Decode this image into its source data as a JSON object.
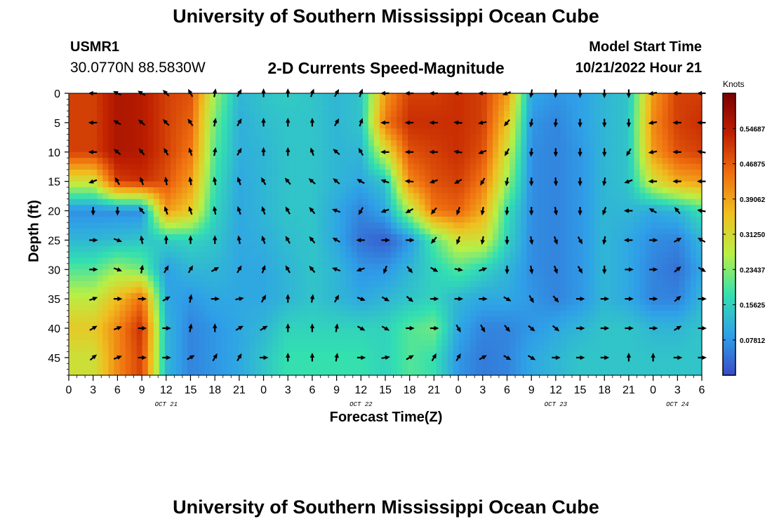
{
  "header": {
    "title": "University of Southern Mississippi Ocean Cube",
    "station": "USMR1",
    "coordinates": "30.0770N  88.5830W",
    "subtitle": "2-D Currents Speed-Magnitude",
    "model_start_label": "Model Start Time",
    "model_start_value": "10/21/2022 Hour 21"
  },
  "footer": {
    "title": "University of Southern Mississippi Ocean Cube"
  },
  "chart_data": {
    "type": "heatmap",
    "title": "2-D Currents Speed-Magnitude",
    "xlabel": "Forecast Time(Z)",
    "ylabel": "Depth (ft)",
    "colorbar_label": "Knots",
    "x_ticks": [
      "0",
      "3",
      "6",
      "9",
      "12",
      "15",
      "18",
      "21",
      "0",
      "3",
      "6",
      "9",
      "12",
      "15",
      "18",
      "21",
      "0",
      "3",
      "6",
      "9",
      "12",
      "15",
      "18",
      "21",
      "0",
      "3",
      "6"
    ],
    "date_labels": [
      {
        "label": "OCT 21",
        "tick_index": 4
      },
      {
        "label": "OCT 22",
        "tick_index": 12
      },
      {
        "label": "OCT 23",
        "tick_index": 20
      },
      {
        "label": "OCT 24",
        "tick_index": 25
      }
    ],
    "y_ticks": [
      0,
      5,
      10,
      15,
      20,
      25,
      30,
      35,
      40,
      45
    ],
    "ylim": [
      48,
      0
    ],
    "hours": [
      3,
      6,
      9,
      12,
      15,
      18,
      21,
      24,
      27,
      30,
      33,
      36,
      39,
      42,
      45,
      48,
      51,
      54,
      57,
      60,
      63,
      66,
      69,
      72,
      75,
      78
    ],
    "depths": [
      0,
      5,
      10,
      15,
      20,
      25,
      30,
      35,
      40,
      45
    ],
    "speed_knots": [
      [
        0.5,
        0.56,
        0.55,
        0.5,
        0.48,
        0.25,
        0.12,
        0.14,
        0.15,
        0.14,
        0.12,
        0.14,
        0.4,
        0.5,
        0.5,
        0.52,
        0.5,
        0.4,
        0.1,
        0.08,
        0.09,
        0.12,
        0.14,
        0.4,
        0.5,
        0.5
      ],
      [
        0.5,
        0.56,
        0.55,
        0.5,
        0.46,
        0.22,
        0.11,
        0.13,
        0.14,
        0.14,
        0.12,
        0.14,
        0.44,
        0.52,
        0.52,
        0.52,
        0.5,
        0.35,
        0.08,
        0.06,
        0.09,
        0.12,
        0.14,
        0.42,
        0.5,
        0.52
      ],
      [
        0.5,
        0.56,
        0.55,
        0.5,
        0.44,
        0.2,
        0.11,
        0.12,
        0.14,
        0.14,
        0.12,
        0.12,
        0.3,
        0.48,
        0.5,
        0.52,
        0.48,
        0.3,
        0.07,
        0.06,
        0.08,
        0.12,
        0.14,
        0.4,
        0.48,
        0.5
      ],
      [
        0.3,
        0.5,
        0.52,
        0.48,
        0.4,
        0.18,
        0.1,
        0.12,
        0.14,
        0.14,
        0.12,
        0.1,
        0.14,
        0.42,
        0.48,
        0.5,
        0.44,
        0.25,
        0.07,
        0.06,
        0.08,
        0.12,
        0.14,
        0.3,
        0.38,
        0.4
      ],
      [
        0.07,
        0.07,
        0.07,
        0.4,
        0.34,
        0.16,
        0.1,
        0.12,
        0.14,
        0.14,
        0.1,
        0.06,
        0.1,
        0.26,
        0.44,
        0.46,
        0.38,
        0.18,
        0.07,
        0.06,
        0.08,
        0.12,
        0.12,
        0.1,
        0.12,
        0.18
      ],
      [
        0.12,
        0.13,
        0.14,
        0.15,
        0.16,
        0.14,
        0.1,
        0.11,
        0.13,
        0.14,
        0.1,
        0.04,
        0.02,
        0.08,
        0.2,
        0.3,
        0.3,
        0.16,
        0.07,
        0.06,
        0.08,
        0.12,
        0.1,
        0.07,
        0.06,
        0.12
      ],
      [
        0.2,
        0.25,
        0.22,
        0.09,
        0.12,
        0.12,
        0.1,
        0.1,
        0.12,
        0.14,
        0.12,
        0.08,
        0.08,
        0.12,
        0.16,
        0.2,
        0.16,
        0.12,
        0.07,
        0.06,
        0.08,
        0.12,
        0.1,
        0.06,
        0.04,
        0.1
      ],
      [
        0.28,
        0.36,
        0.45,
        0.1,
        0.08,
        0.1,
        0.1,
        0.1,
        0.12,
        0.14,
        0.12,
        0.1,
        0.12,
        0.14,
        0.16,
        0.12,
        0.1,
        0.1,
        0.08,
        0.06,
        0.08,
        0.12,
        0.1,
        0.06,
        0.06,
        0.12
      ],
      [
        0.34,
        0.42,
        0.52,
        0.12,
        0.06,
        0.08,
        0.1,
        0.12,
        0.16,
        0.16,
        0.16,
        0.16,
        0.16,
        0.2,
        0.22,
        0.1,
        0.06,
        0.06,
        0.08,
        0.1,
        0.12,
        0.14,
        0.14,
        0.12,
        0.12,
        0.14
      ],
      [
        0.3,
        0.42,
        0.5,
        0.12,
        0.06,
        0.08,
        0.1,
        0.14,
        0.18,
        0.18,
        0.18,
        0.18,
        0.16,
        0.2,
        0.18,
        0.08,
        0.05,
        0.06,
        0.1,
        0.12,
        0.14,
        0.14,
        0.14,
        0.14,
        0.14,
        0.14
      ]
    ],
    "vector_angles_deg": [
      [
        180,
        155,
        150,
        135,
        120,
        80,
        60,
        90,
        90,
        70,
        60,
        70,
        180,
        180,
        180,
        180,
        180,
        200,
        260,
        265,
        270,
        270,
        270,
        190,
        180,
        180
      ],
      [
        180,
        150,
        140,
        135,
        125,
        80,
        60,
        90,
        90,
        90,
        60,
        70,
        180,
        180,
        180,
        175,
        190,
        230,
        260,
        265,
        270,
        270,
        270,
        190,
        180,
        180
      ],
      [
        180,
        140,
        130,
        120,
        110,
        80,
        60,
        90,
        90,
        110,
        140,
        120,
        180,
        180,
        180,
        170,
        200,
        240,
        265,
        270,
        270,
        270,
        240,
        190,
        180,
        170
      ],
      [
        200,
        120,
        110,
        100,
        100,
        100,
        110,
        120,
        130,
        140,
        140,
        150,
        160,
        175,
        200,
        210,
        240,
        260,
        270,
        275,
        270,
        260,
        200,
        180,
        180,
        180
      ],
      [
        270,
        270,
        130,
        110,
        110,
        100,
        110,
        110,
        120,
        130,
        160,
        240,
        200,
        210,
        230,
        250,
        260,
        265,
        270,
        280,
        270,
        250,
        180,
        150,
        130,
        170
      ],
      [
        0,
        340,
        100,
        90,
        90,
        90,
        100,
        110,
        120,
        130,
        150,
        180,
        0,
        0,
        230,
        250,
        260,
        270,
        280,
        290,
        300,
        260,
        180,
        0,
        30,
        150
      ],
      [
        0,
        340,
        80,
        60,
        60,
        30,
        60,
        70,
        120,
        130,
        160,
        200,
        250,
        310,
        330,
        350,
        20,
        270,
        280,
        290,
        300,
        270,
        0,
        0,
        40,
        330
      ],
      [
        20,
        0,
        0,
        30,
        80,
        0,
        10,
        60,
        90,
        80,
        60,
        340,
        330,
        320,
        0,
        0,
        0,
        330,
        300,
        310,
        0,
        0,
        0,
        0,
        40,
        0
      ],
      [
        30,
        20,
        0,
        0,
        80,
        90,
        30,
        30,
        90,
        90,
        80,
        330,
        330,
        0,
        0,
        300,
        300,
        310,
        320,
        320,
        0,
        0,
        0,
        0,
        30,
        0
      ],
      [
        40,
        20,
        0,
        0,
        30,
        60,
        60,
        0,
        90,
        90,
        80,
        0,
        10,
        30,
        60,
        60,
        30,
        330,
        330,
        0,
        0,
        0,
        90,
        90,
        0,
        0
      ]
    ],
    "colorbar": {
      "range": [
        0.0,
        0.625
      ],
      "tick_values": [
        0.07812,
        0.15625,
        0.23437,
        0.3125,
        0.39062,
        0.46875,
        0.54687
      ],
      "tick_labels": [
        "0.07812",
        "0.15625",
        "0.23437",
        "0.31250",
        "0.39062",
        "0.46875",
        "0.54687"
      ],
      "colormap": "jet",
      "colormap_stops": [
        "#3a4cc8",
        "#2fa0e8",
        "#33e0b0",
        "#b8f046",
        "#f0c020",
        "#f07010",
        "#c02000",
        "#7a0000"
      ]
    },
    "grid": false,
    "legend": "colorbar-right"
  }
}
